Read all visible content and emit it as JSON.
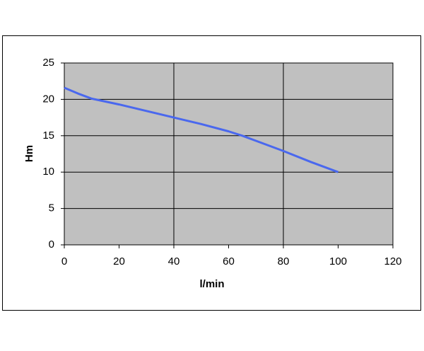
{
  "chart_data": {
    "type": "line",
    "x_label": "l/min",
    "y_label": "Hm",
    "x": [
      0,
      5,
      10,
      20,
      30,
      40,
      50,
      60,
      65,
      70,
      80,
      90,
      100
    ],
    "series": [
      {
        "color": "#4a68ee",
        "values": [
          21.6,
          20.8,
          20.1,
          19.3,
          18.4,
          17.5,
          16.6,
          15.6,
          15.0,
          14.3,
          12.9,
          11.4,
          10.0
        ]
      }
    ],
    "xlim": [
      0,
      120
    ],
    "xticks": [
      0,
      20,
      40,
      60,
      80,
      100,
      120
    ],
    "x_grid": [
      40,
      80
    ],
    "ylim": [
      0,
      25
    ],
    "yticks": [
      0,
      5,
      10,
      15,
      20,
      25
    ],
    "grid": true
  }
}
